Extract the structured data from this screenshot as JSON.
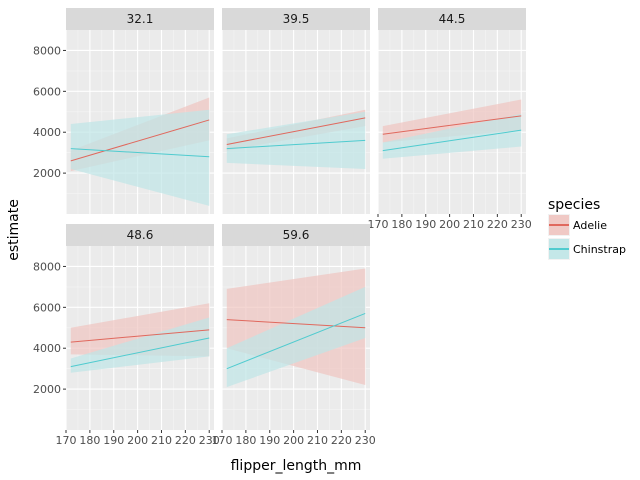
{
  "chart_data": {
    "type": "line",
    "xlabel": "flipper_length_mm",
    "ylabel": "estimate",
    "xlim": [
      170,
      232
    ],
    "ylim": [
      0,
      9000
    ],
    "x_ticks": [
      170,
      180,
      190,
      200,
      210,
      220,
      230
    ],
    "y_ticks": [
      2000,
      4000,
      6000,
      8000
    ],
    "grid": true,
    "legend_position": "right",
    "legend_title": "species",
    "series": [
      {
        "name": "Adelie",
        "color": "#e0685d",
        "fill": "#f0c4c0"
      },
      {
        "name": "Chinstrap",
        "color": "#4fcbcf",
        "fill": "#bfe6e7"
      }
    ],
    "facet_labels": [
      "32.1",
      "39.5",
      "44.5",
      "48.6",
      "59.6"
    ],
    "panels": [
      {
        "label": "32.1",
        "lines": [
          {
            "series": "Adelie",
            "x": [
              172,
              230
            ],
            "y": [
              2600,
              4600
            ],
            "lower": [
              2100,
              3600
            ],
            "upper": [
              3100,
              5700
            ]
          },
          {
            "series": "Chinstrap",
            "x": [
              172,
              230
            ],
            "y": [
              3200,
              2800
            ],
            "lower": [
              2200,
              400
            ],
            "upper": [
              4400,
              5100
            ]
          }
        ]
      },
      {
        "label": "39.5",
        "lines": [
          {
            "series": "Adelie",
            "x": [
              172,
              230
            ],
            "y": [
              3400,
              4700
            ],
            "lower": [
              3100,
              4300
            ],
            "upper": [
              3700,
              5100
            ]
          },
          {
            "series": "Chinstrap",
            "x": [
              172,
              230
            ],
            "y": [
              3200,
              3600
            ],
            "lower": [
              2500,
              2200
            ],
            "upper": [
              3900,
              5000
            ]
          }
        ]
      },
      {
        "label": "44.5",
        "lines": [
          {
            "series": "Adelie",
            "x": [
              172,
              230
            ],
            "y": [
              3900,
              4800
            ],
            "lower": [
              3500,
              4100
            ],
            "upper": [
              4300,
              5600
            ]
          },
          {
            "series": "Chinstrap",
            "x": [
              172,
              230
            ],
            "y": [
              3100,
              4100
            ],
            "lower": [
              2700,
              3300
            ],
            "upper": [
              3500,
              4900
            ]
          }
        ]
      },
      {
        "label": "48.6",
        "lines": [
          {
            "series": "Adelie",
            "x": [
              172,
              230
            ],
            "y": [
              4300,
              4900
            ],
            "lower": [
              3700,
              3600
            ],
            "upper": [
              5000,
              6200
            ]
          },
          {
            "series": "Chinstrap",
            "x": [
              172,
              230
            ],
            "y": [
              3100,
              4500
            ],
            "lower": [
              2800,
              3600
            ],
            "upper": [
              3500,
              5500
            ]
          }
        ]
      },
      {
        "label": "59.6",
        "lines": [
          {
            "series": "Adelie",
            "x": [
              172,
              230
            ],
            "y": [
              5400,
              5000
            ],
            "lower": [
              4000,
              2200
            ],
            "upper": [
              6900,
              7900
            ]
          },
          {
            "series": "Chinstrap",
            "x": [
              172,
              230
            ],
            "y": [
              3000,
              5700
            ],
            "lower": [
              2100,
              4500
            ],
            "upper": [
              4000,
              7000
            ]
          }
        ]
      }
    ]
  }
}
